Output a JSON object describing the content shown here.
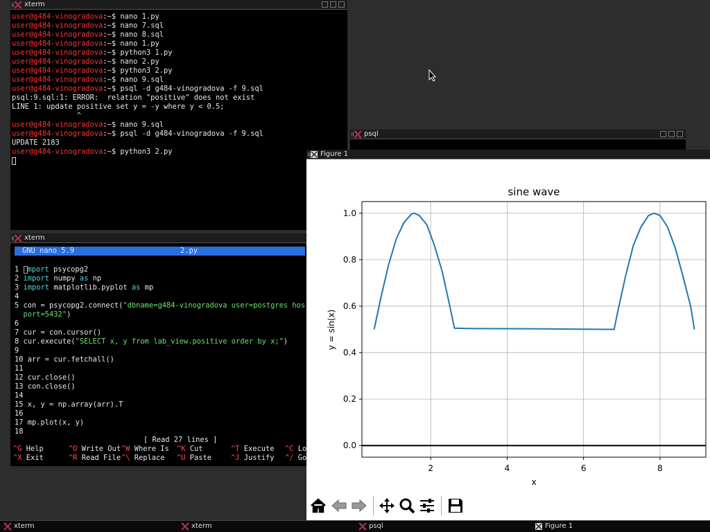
{
  "windows": {
    "xterm_top": {
      "title": "xterm",
      "lines": [
        {
          "prompt": "user@g484-vinogradova",
          "rest": ":~$ nano 1.py"
        },
        {
          "prompt": "user@g484-vinogradova",
          "rest": ":~$ nano 7.sql"
        },
        {
          "prompt": "user@g484-vinogradova",
          "rest": ":~$ nano 8.sql"
        },
        {
          "prompt": "user@g484-vinogradova",
          "rest": ":~$ nano 1.py"
        },
        {
          "prompt": "user@g484-vinogradova",
          "rest": ":~$ python3 1.py"
        },
        {
          "prompt": "user@g484-vinogradova",
          "rest": ":~$ nano 2.py"
        },
        {
          "prompt": "user@g484-vinogradova",
          "rest": ":~$ python3 2.py"
        },
        {
          "prompt": "user@g484-vinogradova",
          "rest": ":~$ nano 9.sql"
        },
        {
          "prompt": "user@g484-vinogradova",
          "rest": ":~$ psql -d g484-vinogradova -f 9.sql"
        },
        {
          "prompt": "",
          "rest": "psql:9.sql:1: ERROR:  relation \"positive\" does not exist"
        },
        {
          "prompt": "",
          "rest": "LINE 1: update positive set y = -y where y < 0.5;"
        },
        {
          "prompt": "",
          "rest": "               ^"
        },
        {
          "prompt": "user@g484-vinogradova",
          "rest": ":~$ nano 9.sql"
        },
        {
          "prompt": "user@g484-vinogradova",
          "rest": ":~$ psql -d g484-vinogradova -f 9.sql"
        },
        {
          "prompt": "",
          "rest": "UPDATE 2183"
        },
        {
          "prompt": "user@g484-vinogradova",
          "rest": ":~$ python3 2.py"
        }
      ]
    },
    "psql": {
      "title": "psql"
    },
    "xterm_nano": {
      "title": "xterm",
      "header_left": "GNU nano 5.9",
      "header_file": "2.py",
      "status": "[ Read 27 lines ]",
      "shortcuts_row1": [
        {
          "key": "^G",
          "label": "Help"
        },
        {
          "key": "^O",
          "label": "Write Out"
        },
        {
          "key": "^W",
          "label": "Where Is"
        },
        {
          "key": "^K",
          "label": "Cut"
        },
        {
          "key": "^T",
          "label": "Execute"
        },
        {
          "key": "^C",
          "label": "Lo"
        }
      ],
      "shortcuts_row2": [
        {
          "key": "^X",
          "label": "Exit"
        },
        {
          "key": "^R",
          "label": "Read File"
        },
        {
          "key": "^\\",
          "label": "Replace"
        },
        {
          "key": "^U",
          "label": "Paste"
        },
        {
          "key": "^J",
          "label": "Justify"
        },
        {
          "key": "^/",
          "label": "Go"
        }
      ]
    },
    "figure": {
      "title": "Figure 1"
    }
  },
  "taskbar": [
    {
      "label": "xterm"
    },
    {
      "label": "xterm"
    },
    {
      "label": "psql"
    },
    {
      "label": "Figure 1"
    }
  ],
  "icons": {
    "toolbar": [
      "home-icon",
      "back-arrow-icon",
      "forward-arrow-icon",
      "pan-icon",
      "zoom-icon",
      "configure-subplots-icon",
      "save-icon"
    ]
  },
  "colors": {
    "prompt": "#ff3232",
    "nano_header": "#2b6ee0",
    "keyword": "#4fd9e0",
    "string": "#6de06d",
    "line_color": "#1f77b4"
  },
  "chart_data": {
    "type": "line",
    "title": "sine wave",
    "xlabel": "x",
    "ylabel": "y = sin(x)",
    "xlim": [
      0.2,
      9.2
    ],
    "ylim": [
      -0.05,
      1.05
    ],
    "xticks": [
      2,
      4,
      6,
      8
    ],
    "yticks": [
      0.0,
      0.2,
      0.4,
      0.6,
      0.8,
      1.0
    ],
    "xtick_labels": [
      "2",
      "4",
      "6",
      "8"
    ],
    "ytick_labels": [
      "0.0",
      "0.2",
      "0.4",
      "0.6",
      "0.8",
      "1.0"
    ],
    "grid": true,
    "hline": 0.0,
    "series": [
      {
        "x": [
          0.52,
          0.7,
          0.9,
          1.1,
          1.3,
          1.5,
          1.57,
          1.7,
          1.9,
          2.1,
          2.3,
          2.5,
          2.62,
          3.0,
          4.0,
          5.0,
          6.0,
          6.8,
          6.9,
          7.1,
          7.3,
          7.5,
          7.7,
          7.85,
          8.0,
          8.2,
          8.4,
          8.6,
          8.8,
          8.9
        ],
        "y": [
          0.5,
          0.64,
          0.78,
          0.89,
          0.96,
          0.997,
          1.0,
          0.99,
          0.95,
          0.86,
          0.75,
          0.6,
          0.505,
          0.504,
          0.503,
          0.502,
          0.501,
          0.5,
          0.58,
          0.73,
          0.86,
          0.94,
          0.99,
          1.0,
          0.99,
          0.94,
          0.85,
          0.73,
          0.6,
          0.5
        ]
      }
    ]
  }
}
